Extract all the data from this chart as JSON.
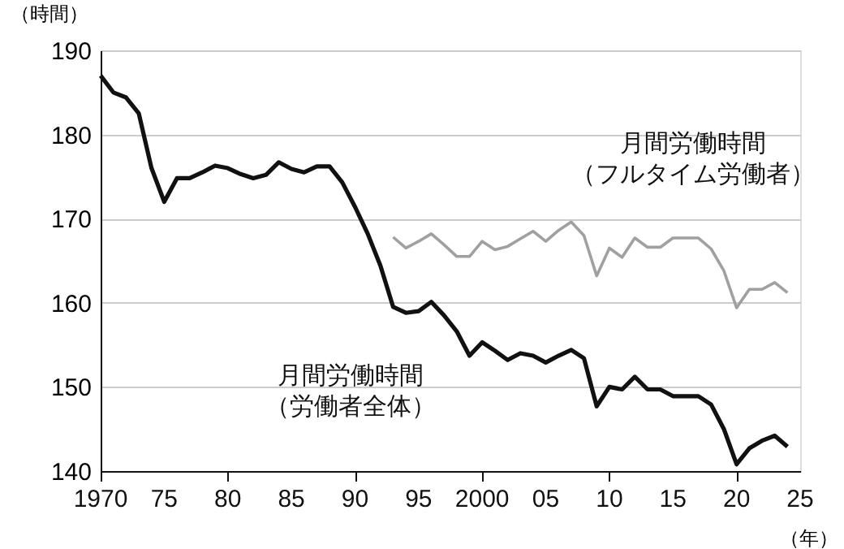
{
  "chart_data": {
    "type": "line",
    "xlabel": "（年）",
    "ylabel": "（時間）",
    "xlim": [
      1970,
      2025
    ],
    "xticks": [
      {
        "value": 1970,
        "label": "1970"
      },
      {
        "value": 1975,
        "label": "75"
      },
      {
        "value": 1980,
        "label": "80"
      },
      {
        "value": 1985,
        "label": "85"
      },
      {
        "value": 1990,
        "label": "90"
      },
      {
        "value": 1995,
        "label": "95"
      },
      {
        "value": 2000,
        "label": "2000"
      },
      {
        "value": 2005,
        "label": "05"
      },
      {
        "value": 2010,
        "label": "10"
      },
      {
        "value": 2015,
        "label": "15"
      },
      {
        "value": 2020,
        "label": "20"
      },
      {
        "value": 2025,
        "label": "25"
      }
    ],
    "ylim": [
      140,
      190
    ],
    "yticks": [
      140,
      150,
      160,
      170,
      180,
      190
    ],
    "grid": "y",
    "marker": "none",
    "line_style": "solid",
    "series": [
      {
        "color": "#111111",
        "x": [
          1970,
          1971,
          1972,
          1973,
          1974,
          1975,
          1976,
          1977,
          1978,
          1979,
          1980,
          1981,
          1982,
          1983,
          1984,
          1985,
          1986,
          1987,
          1988,
          1989,
          1990,
          1991,
          1992,
          1993,
          1994,
          1995,
          1996,
          1997,
          1998,
          1999,
          2000,
          2001,
          2002,
          2003,
          2004,
          2005,
          2006,
          2007,
          2008,
          2009,
          2010,
          2011,
          2012,
          2013,
          2014,
          2015,
          2016,
          2017,
          2018,
          2019,
          2020,
          2021,
          2022,
          2023,
          2024
        ],
        "values": [
          187.0,
          185.0,
          184.4,
          182.5,
          176.0,
          172.0,
          174.8,
          174.8,
          175.5,
          176.3,
          176.0,
          175.3,
          174.8,
          175.2,
          176.7,
          175.9,
          175.5,
          176.2,
          176.2,
          174.3,
          171.4,
          168.2,
          164.4,
          159.5,
          158.8,
          159.0,
          160.1,
          158.5,
          156.6,
          153.7,
          155.3,
          154.3,
          153.2,
          154.0,
          153.7,
          152.9,
          153.7,
          154.4,
          153.4,
          147.7,
          150.0,
          149.7,
          151.2,
          149.7,
          149.7,
          148.9,
          148.9,
          148.9,
          147.9,
          145.0,
          140.8,
          142.7,
          143.6,
          144.2,
          142.9
        ]
      },
      {
        "color": "#a0a0a0",
        "x": [
          1993,
          1994,
          1995,
          1996,
          1997,
          1998,
          1999,
          2000,
          2001,
          2002,
          2003,
          2004,
          2005,
          2006,
          2007,
          2008,
          2009,
          2010,
          2011,
          2012,
          2013,
          2014,
          2015,
          2016,
          2017,
          2018,
          2019,
          2020,
          2021,
          2022,
          2023,
          2024
        ],
        "values": [
          167.8,
          166.5,
          167.3,
          168.2,
          166.9,
          165.5,
          165.5,
          167.3,
          166.3,
          166.7,
          167.6,
          168.5,
          167.3,
          168.6,
          169.6,
          168.0,
          163.2,
          166.5,
          165.4,
          167.7,
          166.6,
          166.6,
          167.7,
          167.7,
          167.7,
          166.4,
          163.8,
          159.4,
          161.6,
          161.6,
          162.4,
          161.2
        ]
      }
    ],
    "annotations": [
      "月間労働時間",
      "（労働者全体）",
      "月間労働時間",
      "（フルタイム労働者）"
    ]
  }
}
